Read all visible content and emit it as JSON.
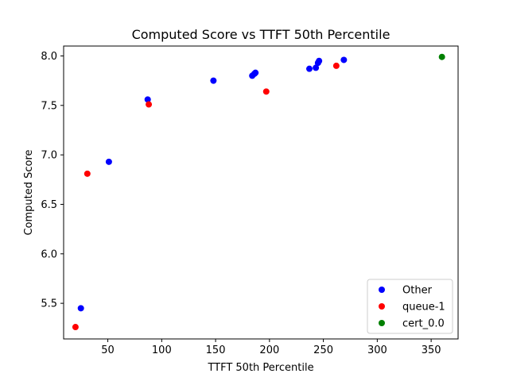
{
  "chart_data": {
    "type": "scatter",
    "title": "Computed Score vs TTFT 50th Percentile",
    "xlabel": "TTFT 50th Percentile",
    "ylabel": "Computed Score",
    "xlim": [
      9,
      375
    ],
    "ylim": [
      5.14,
      8.1
    ],
    "x_ticks": [
      50,
      100,
      150,
      200,
      250,
      300,
      350
    ],
    "y_ticks": [
      5.5,
      6.0,
      6.5,
      7.0,
      7.5,
      8.0
    ],
    "grid": false,
    "legend_position": "lower-right",
    "series": [
      {
        "name": "Other",
        "color": "#0000ff",
        "points": [
          {
            "x": 25,
            "y": 5.45
          },
          {
            "x": 51,
            "y": 6.93
          },
          {
            "x": 87,
            "y": 7.56
          },
          {
            "x": 148,
            "y": 7.75
          },
          {
            "x": 184,
            "y": 7.8
          },
          {
            "x": 186,
            "y": 7.82
          },
          {
            "x": 187,
            "y": 7.83
          },
          {
            "x": 237,
            "y": 7.87
          },
          {
            "x": 243,
            "y": 7.88
          },
          {
            "x": 245,
            "y": 7.93
          },
          {
            "x": 246,
            "y": 7.95
          },
          {
            "x": 269,
            "y": 7.96
          }
        ]
      },
      {
        "name": "queue-1",
        "color": "#ff0000",
        "points": [
          {
            "x": 20,
            "y": 5.26
          },
          {
            "x": 31,
            "y": 6.81
          },
          {
            "x": 88,
            "y": 7.51
          },
          {
            "x": 197,
            "y": 7.64
          },
          {
            "x": 262,
            "y": 7.9
          }
        ]
      },
      {
        "name": "cert_0.0",
        "color": "#008000",
        "points": [
          {
            "x": 360,
            "y": 7.99
          }
        ]
      }
    ]
  }
}
